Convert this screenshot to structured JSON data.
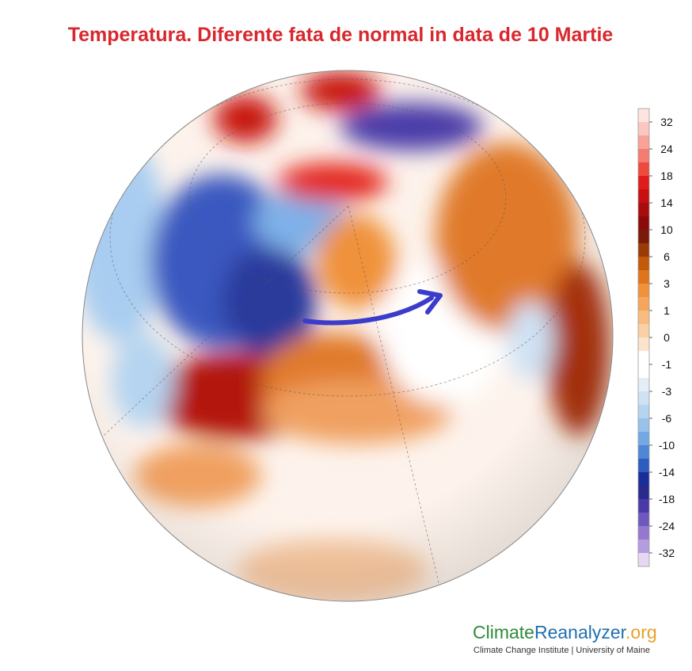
{
  "title": "Temperatura. Diferente fata de normal in data de 10 Martie",
  "colorbar": {
    "ticks": [
      32,
      24,
      18,
      14,
      10,
      6,
      3,
      1,
      0,
      -1,
      -3,
      -6,
      -10,
      -14,
      -18,
      -24,
      -32
    ],
    "colors": [
      "#fde4e0",
      "#fbc8c0",
      "#f8a398",
      "#f47c70",
      "#f04a3e",
      "#e01b1b",
      "#c81010",
      "#a80c0c",
      "#8c0a0a",
      "#7a1a08",
      "#9c3a06",
      "#c25a0a",
      "#e0741a",
      "#f0923a",
      "#f5a65c",
      "#f8bc80",
      "#fad0a4",
      "#fce4cc",
      "#ffffff",
      "#ffffff",
      "#e4eef8",
      "#cfe2f4",
      "#b5d4f0",
      "#98c2ec",
      "#74a8e2",
      "#4f86d6",
      "#2f5cbf",
      "#1a2e9a",
      "#2a2a8c",
      "#4a3aa8",
      "#6e58c0",
      "#9478d0",
      "#b49ce0",
      "#e6d8f2"
    ]
  },
  "logo": {
    "part1": "Climate",
    "part2": "Reanalyzer",
    "part3": ".org",
    "subtitle": "Climate Change Institute | University of Maine"
  }
}
